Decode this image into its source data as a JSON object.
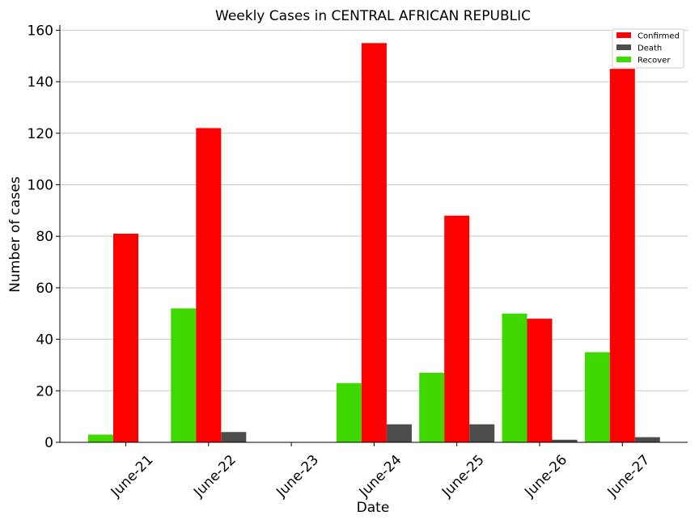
{
  "chart_data": {
    "type": "bar",
    "title": "Weekly Cases in CENTRAL AFRICAN REPUBLIC",
    "xlabel": "Date",
    "ylabel": "Number of cases",
    "ylim": [
      0,
      162
    ],
    "yticks": [
      0,
      20,
      40,
      60,
      80,
      100,
      120,
      140,
      160
    ],
    "grid": "horizontal",
    "legend_position": "top-right",
    "categories": [
      "June-21",
      "June-22",
      "June-23",
      "June-24",
      "June-25",
      "June-26",
      "June-27"
    ],
    "series": [
      {
        "name": "Recover",
        "color": "#3fd800",
        "values": [
          3,
          52,
          0,
          23,
          27,
          50,
          35
        ]
      },
      {
        "name": "Confirmed",
        "color": "#ff0000",
        "values": [
          81,
          122,
          0,
          155,
          88,
          48,
          145
        ]
      },
      {
        "name": "Death",
        "color": "#4d4d4d",
        "values": [
          0,
          4,
          0,
          7,
          7,
          1,
          2
        ]
      }
    ],
    "legend_order": [
      "Confirmed",
      "Death",
      "Recover"
    ]
  }
}
